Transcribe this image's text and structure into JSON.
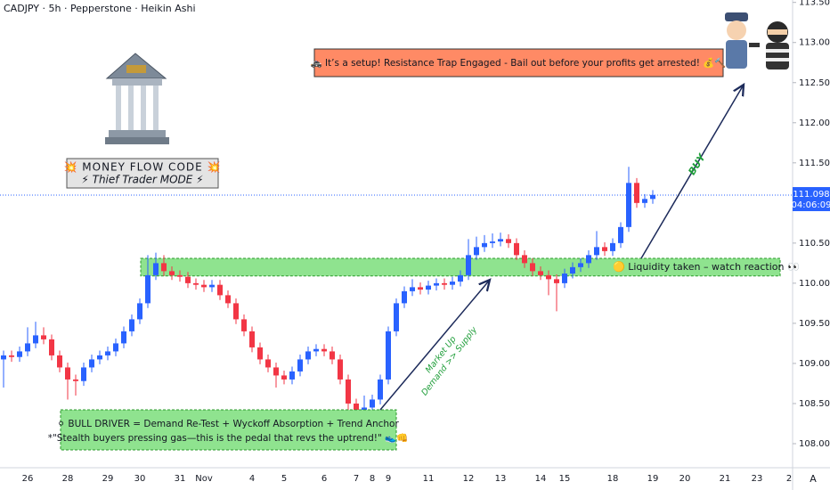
{
  "chart_data": {
    "type": "candlestick",
    "title": "CADJPY · 5h · Pepperstone · Heikin Ashi",
    "categories": [
      null,
      null,
      null,
      "26",
      null,
      null,
      null,
      null,
      "28",
      null,
      null,
      null,
      null,
      "29",
      null,
      null,
      null,
      "30",
      null,
      null,
      null,
      null,
      "31",
      null,
      null,
      "Nov",
      null,
      null,
      null,
      null,
      null,
      "4",
      null,
      null,
      null,
      "5",
      null,
      null,
      null,
      null,
      "6",
      null,
      null,
      null,
      "7",
      null,
      "8",
      null,
      "9",
      null,
      null,
      null,
      null,
      "11",
      null,
      null,
      null,
      null,
      "12",
      null,
      null,
      null,
      "13",
      null,
      null,
      null,
      null,
      "14",
      null,
      null,
      "15",
      null,
      null,
      null,
      null,
      null,
      "18",
      null,
      null,
      null,
      null,
      "19",
      null,
      null,
      null,
      "20",
      null,
      null,
      null,
      null,
      "21",
      null,
      null,
      null,
      "23",
      null,
      null,
      null,
      "2"
    ],
    "open": [
      109.05,
      109.1,
      109.08,
      109.15,
      109.25,
      109.35,
      109.3,
      109.1,
      108.95,
      108.8,
      108.78,
      108.95,
      109.05,
      109.1,
      109.15,
      109.25,
      109.4,
      109.55,
      109.75,
      110.1,
      110.25,
      110.15,
      110.1,
      110.08,
      110.0,
      109.98,
      109.95,
      109.98,
      109.85,
      109.75,
      109.55,
      109.4,
      109.2,
      109.05,
      108.95,
      108.85,
      108.8,
      108.9,
      109.05,
      109.15,
      109.18,
      109.15,
      109.05,
      108.8,
      108.5,
      108.42,
      108.45,
      108.55,
      108.8,
      109.4,
      109.75,
      109.9,
      109.95,
      109.92,
      109.97,
      110.0,
      109.98,
      110.02,
      110.1,
      110.35,
      110.45,
      110.5,
      110.52,
      110.55,
      110.5,
      110.35,
      110.25,
      110.15,
      110.1,
      110.05,
      110.0,
      110.12,
      110.2,
      110.25,
      110.35,
      110.45,
      110.4,
      110.5,
      110.7,
      111.25,
      111.0,
      111.05,
      null,
      null,
      null,
      null,
      null,
      null,
      null,
      null,
      null,
      null,
      null,
      null,
      null,
      null,
      null,
      null,
      null
    ],
    "high": [
      109.16,
      109.16,
      109.21,
      109.45,
      109.52,
      109.45,
      109.36,
      109.16,
      109.01,
      108.86,
      109.01,
      109.11,
      109.16,
      109.21,
      109.31,
      109.46,
      109.61,
      109.81,
      110.35,
      110.38,
      110.35,
      110.21,
      110.16,
      110.14,
      110.06,
      110.04,
      110.04,
      110.04,
      109.91,
      109.81,
      109.61,
      109.46,
      109.26,
      109.11,
      109.01,
      108.91,
      108.96,
      109.11,
      109.21,
      109.24,
      109.24,
      109.21,
      109.11,
      108.86,
      108.56,
      108.6,
      108.61,
      108.86,
      109.46,
      109.81,
      109.96,
      110.05,
      110.01,
      110.03,
      110.06,
      110.06,
      110.08,
      110.16,
      110.55,
      110.58,
      110.6,
      110.62,
      110.63,
      110.61,
      110.56,
      110.41,
      110.31,
      110.21,
      110.16,
      110.11,
      110.18,
      110.26,
      110.31,
      110.41,
      110.65,
      110.51,
      110.56,
      110.76,
      111.45,
      111.31,
      111.11,
      111.16,
      null,
      null,
      null,
      null,
      null,
      null,
      null,
      null,
      null,
      null,
      null,
      null,
      null,
      null,
      null,
      null,
      null
    ],
    "low": [
      108.7,
      109.02,
      109.02,
      109.09,
      109.19,
      109.24,
      109.04,
      108.89,
      108.55,
      108.6,
      108.72,
      108.89,
      108.99,
      109.04,
      109.09,
      109.19,
      109.34,
      109.49,
      109.69,
      110.04,
      110.09,
      110.04,
      110.02,
      109.94,
      109.92,
      109.89,
      109.89,
      109.79,
      109.69,
      109.49,
      109.34,
      109.14,
      108.99,
      108.89,
      108.7,
      108.74,
      108.74,
      108.84,
      108.99,
      109.09,
      109.09,
      108.99,
      108.74,
      108.4,
      108.36,
      108.36,
      108.39,
      108.49,
      108.74,
      109.34,
      109.69,
      109.84,
      109.86,
      109.86,
      109.91,
      109.92,
      109.92,
      109.96,
      110.04,
      110.29,
      110.39,
      110.44,
      110.46,
      110.44,
      110.29,
      110.19,
      110.09,
      110.04,
      109.85,
      109.65,
      109.94,
      110.06,
      110.14,
      110.19,
      110.29,
      110.34,
      110.34,
      110.44,
      110.64,
      110.94,
      110.94,
      110.99,
      null,
      null,
      null,
      null,
      null,
      null,
      null,
      null,
      null,
      null,
      null,
      null,
      null,
      null,
      null,
      null,
      null
    ],
    "close": [
      109.1,
      109.08,
      109.15,
      109.25,
      109.35,
      109.3,
      109.1,
      108.95,
      108.8,
      108.78,
      108.95,
      109.05,
      109.1,
      109.15,
      109.25,
      109.4,
      109.55,
      109.75,
      110.1,
      110.25,
      110.15,
      110.1,
      110.08,
      110.0,
      109.98,
      109.95,
      109.98,
      109.85,
      109.75,
      109.55,
      109.4,
      109.2,
      109.05,
      108.95,
      108.85,
      108.8,
      108.9,
      109.05,
      109.15,
      109.18,
      109.15,
      109.05,
      108.8,
      108.5,
      108.42,
      108.45,
      108.55,
      108.8,
      109.4,
      109.75,
      109.9,
      109.95,
      109.92,
      109.97,
      110.0,
      109.98,
      110.02,
      110.1,
      110.35,
      110.45,
      110.5,
      110.52,
      110.55,
      110.5,
      110.35,
      110.25,
      110.15,
      110.1,
      110.05,
      110.0,
      110.12,
      110.2,
      110.25,
      110.35,
      110.45,
      110.4,
      110.5,
      110.7,
      111.25,
      111.0,
      111.05,
      111.1,
      null,
      null,
      null,
      null,
      null,
      null,
      null,
      null,
      null,
      null,
      null,
      null,
      null,
      null,
      null,
      null,
      null
    ],
    "up_color": "#2962ff",
    "down_color": "#f23645",
    "ylim": [
      107.7,
      113.53
    ],
    "yticks": [
      {
        "value": 108,
        "label": "108.000"
      },
      {
        "value": 108.5,
        "label": "108.500"
      },
      {
        "value": 109,
        "label": "109.000"
      },
      {
        "value": 109.5,
        "label": "109.500"
      },
      {
        "value": 110,
        "label": "110.000"
      },
      {
        "value": 110.5,
        "label": "110.500"
      },
      {
        "value": 111.5,
        "label": "111.500"
      },
      {
        "value": 112,
        "label": "112.000"
      },
      {
        "value": 112.5,
        "label": "112.500"
      },
      {
        "value": 113,
        "label": "113.000"
      },
      {
        "value": 113.5,
        "label": "113.500"
      }
    ],
    "last_price": 111.098,
    "countdown": "04:06:09",
    "zone": {
      "low": 110.09,
      "high": 110.31,
      "color": "#8fe38f"
    },
    "annotations": {
      "callout": "🚓 It’s a setup! Resistance Trap Engaged - Bail out before your profits get arrested! 💰🔨",
      "money_flow_title": "💥 MONEY FLOW CODE 💥",
      "money_flow_mode": "⚡ Thief Trader MODE ⚡",
      "buy": "BUY",
      "market_up": "Market Up",
      "demand_supply": "Demand >> Supply",
      "liquidity": "🟡 Liquidity taken – watch reaction 👀",
      "bull_driver": "⚪ BULL DRIVER = Demand Re-Test + Wyckoff Absorption + Trend Anchor",
      "stealth": "*\"Stealth buyers pressing gas—this is the pedal that revs the uptrend!\" 👟👊"
    },
    "auto_scale": "A"
  }
}
